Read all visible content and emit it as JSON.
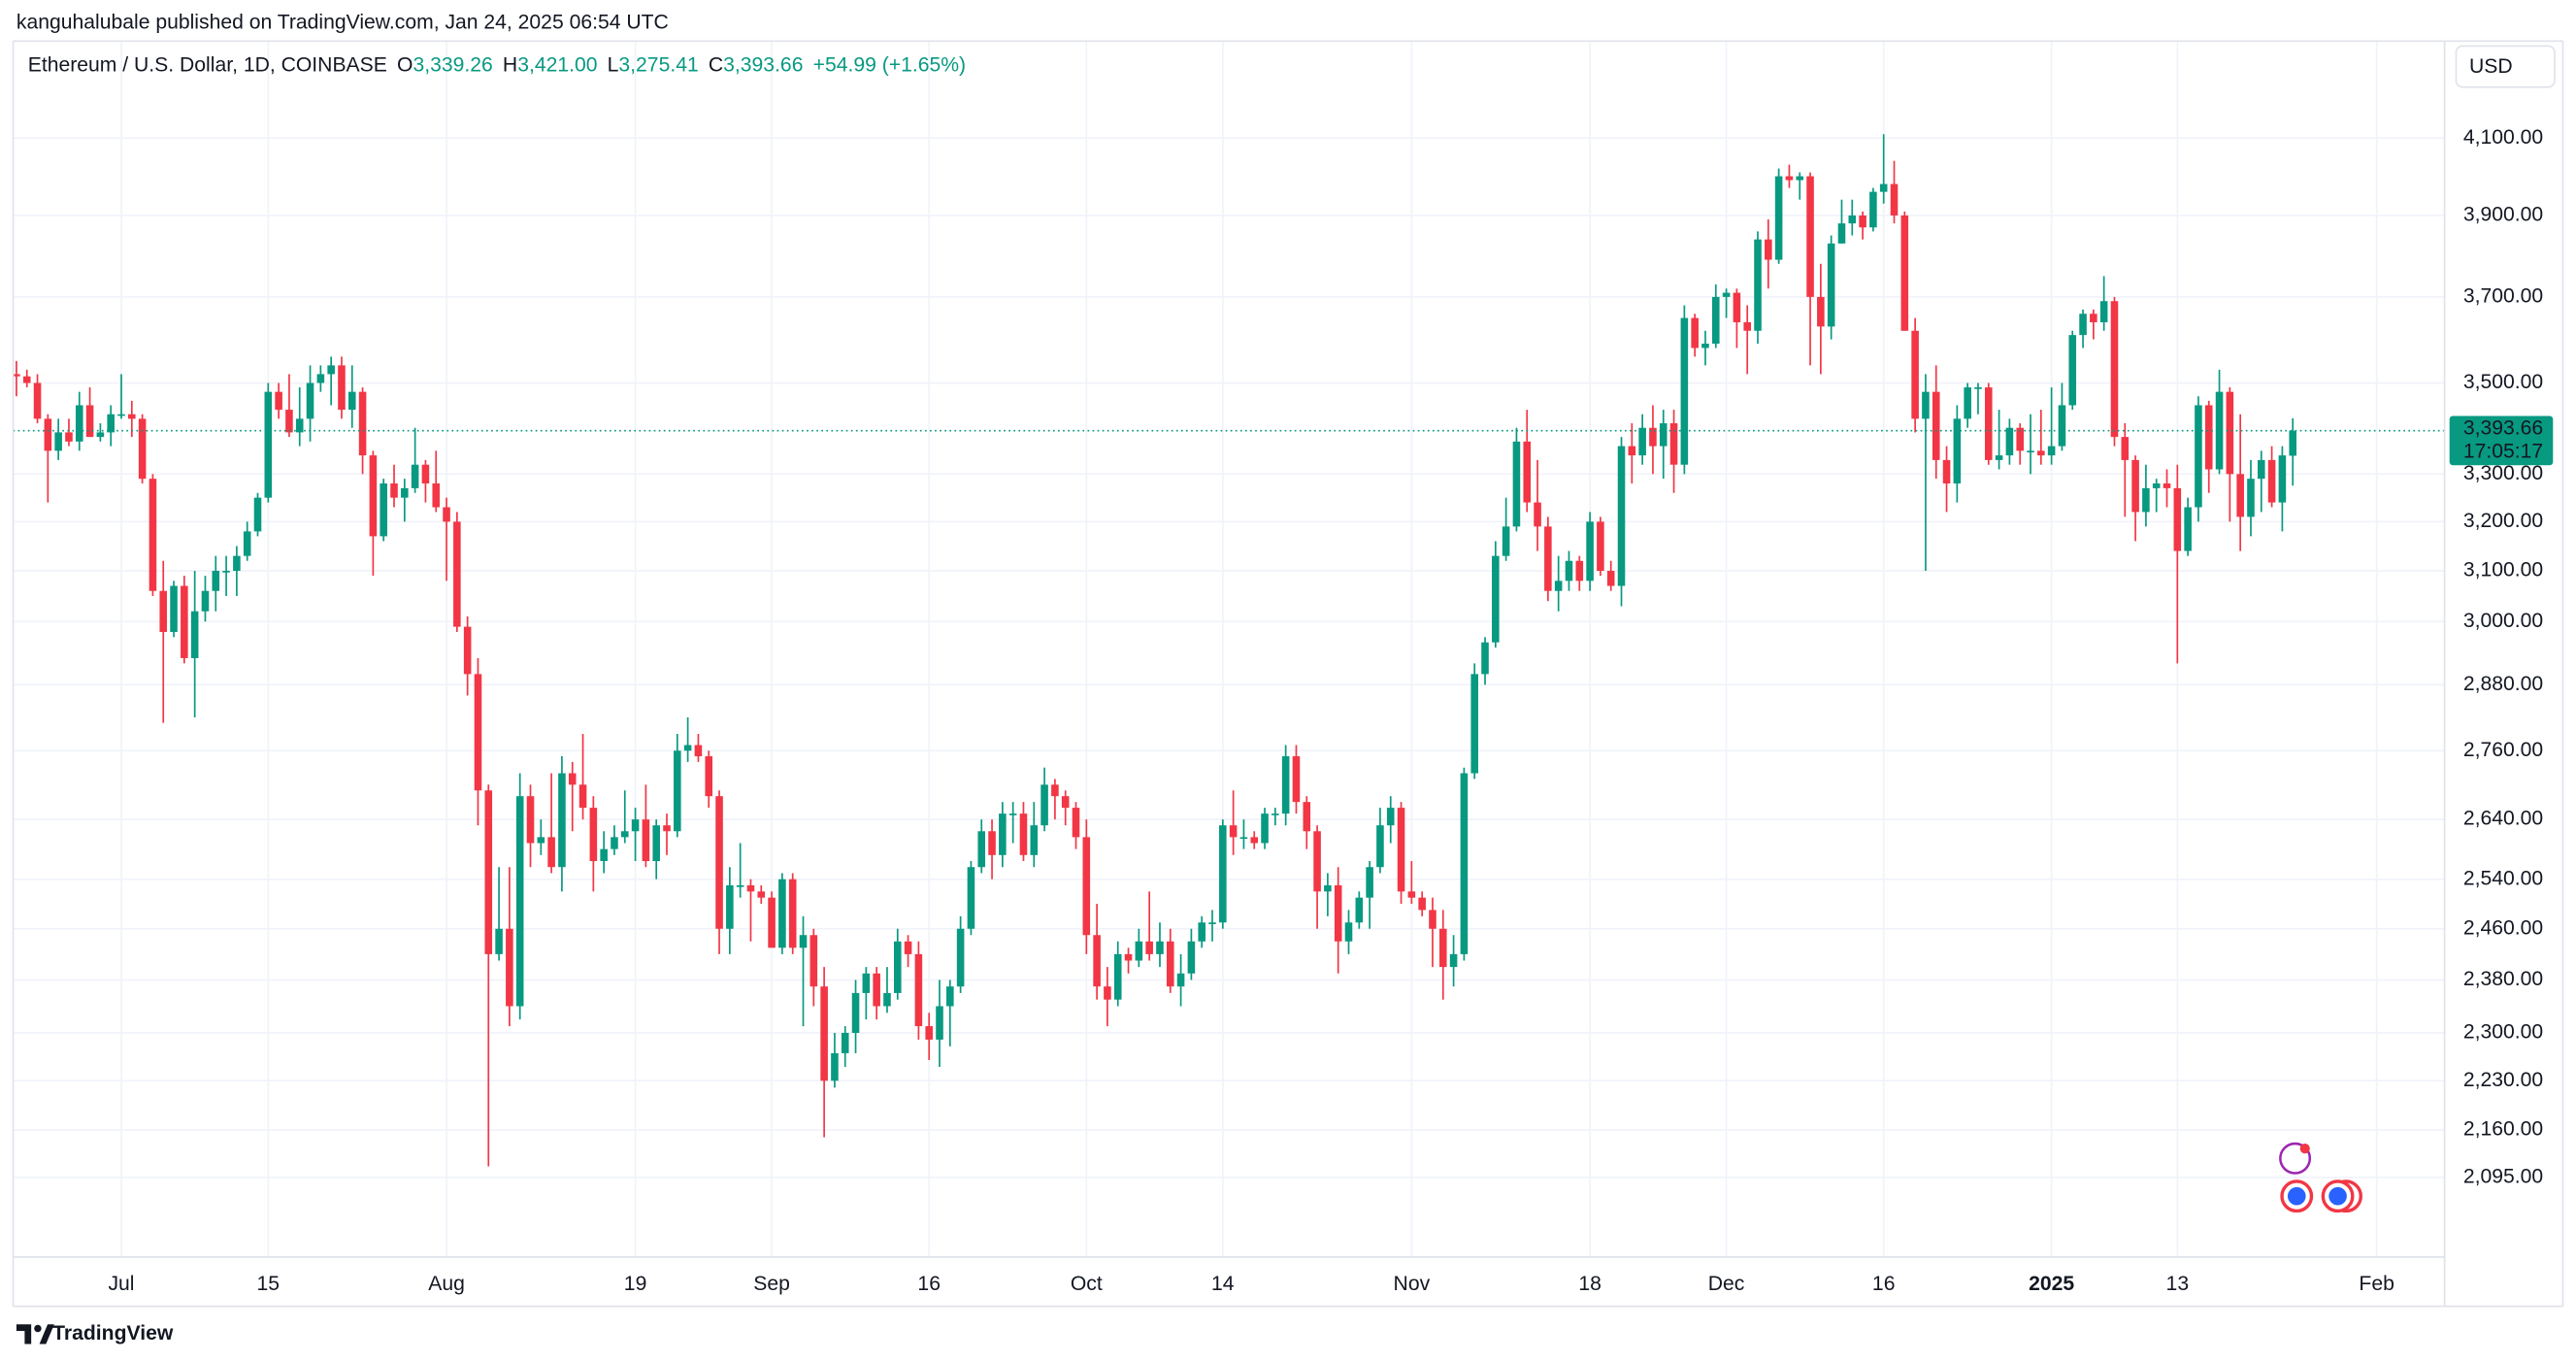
{
  "header": {
    "published": "kanguhalubale published on TradingView.com, Jan 24, 2025 06:54 UTC",
    "currency": "USD"
  },
  "footer": {
    "brand": "TradingView"
  },
  "chart_data": {
    "type": "candlestick",
    "title": "Ethereum / U.S. Dollar, 1D, COINBASE",
    "ohlc_legend": [
      {
        "key": "O",
        "text": "3,339.26"
      },
      {
        "key": "H",
        "text": "3,421.00"
      },
      {
        "key": "L",
        "text": "3,275.41"
      },
      {
        "key": "C",
        "text": "3,393.66"
      }
    ],
    "change": "+54.99 (+1.65%)",
    "price_tag": "3,393.66",
    "countdown": "17:05:17",
    "up_color": "#089981",
    "down_color": "#f23645",
    "log_scale": true,
    "grid": true,
    "xlim": [
      "2024-06-21",
      "2025-02-07"
    ],
    "ylim": [
      1990,
      4365
    ],
    "yticks": [
      {
        "value": 4100,
        "label": "4,100.00"
      },
      {
        "value": 3900,
        "label": "3,900.00"
      },
      {
        "value": 3700,
        "label": "3,700.00"
      },
      {
        "value": 3500,
        "label": "3,500.00"
      },
      {
        "value": 3300,
        "label": "3,300.00"
      },
      {
        "value": 3200,
        "label": "3,200.00"
      },
      {
        "value": 3100,
        "label": "3,100.00"
      },
      {
        "value": 3000,
        "label": "3,000.00"
      },
      {
        "value": 2880,
        "label": "2,880.00"
      },
      {
        "value": 2760,
        "label": "2,760.00"
      },
      {
        "value": 2640,
        "label": "2,640.00"
      },
      {
        "value": 2540,
        "label": "2,540.00"
      },
      {
        "value": 2460,
        "label": "2,460.00"
      },
      {
        "value": 2380,
        "label": "2,380.00"
      },
      {
        "value": 2300,
        "label": "2,300.00"
      },
      {
        "value": 2230,
        "label": "2,230.00"
      },
      {
        "value": 2160,
        "label": "2,160.00"
      },
      {
        "value": 2095,
        "label": "2,095.00"
      }
    ],
    "xticks": [
      {
        "value": "2024-07-01",
        "label": "Jul"
      },
      {
        "value": "2024-07-15",
        "label": "15"
      },
      {
        "value": "2024-08-01",
        "label": "Aug"
      },
      {
        "value": "2024-08-19",
        "label": "19"
      },
      {
        "value": "2024-09-01",
        "label": "Sep"
      },
      {
        "value": "2024-09-16",
        "label": "16"
      },
      {
        "value": "2024-10-01",
        "label": "Oct"
      },
      {
        "value": "2024-10-14",
        "label": "14"
      },
      {
        "value": "2024-11-01",
        "label": "Nov"
      },
      {
        "value": "2024-11-18",
        "label": "18"
      },
      {
        "value": "2024-12-01",
        "label": "Dec"
      },
      {
        "value": "2024-12-16",
        "label": "16"
      },
      {
        "value": "2025-01-01",
        "label": "2025"
      },
      {
        "value": "2025-01-13",
        "label": "13"
      },
      {
        "value": "2025-02-01",
        "label": "Feb"
      }
    ],
    "x": [
      "2024-06-21",
      "2024-06-22",
      "2024-06-23",
      "2024-06-24",
      "2024-06-25",
      "2024-06-26",
      "2024-06-27",
      "2024-06-28",
      "2024-06-29",
      "2024-06-30",
      "2024-07-01",
      "2024-07-02",
      "2024-07-03",
      "2024-07-04",
      "2024-07-05",
      "2024-07-06",
      "2024-07-07",
      "2024-07-08",
      "2024-07-09",
      "2024-07-10",
      "2024-07-11",
      "2024-07-12",
      "2024-07-13",
      "2024-07-14",
      "2024-07-15",
      "2024-07-16",
      "2024-07-17",
      "2024-07-18",
      "2024-07-19",
      "2024-07-20",
      "2024-07-21",
      "2024-07-22",
      "2024-07-23",
      "2024-07-24",
      "2024-07-25",
      "2024-07-26",
      "2024-07-27",
      "2024-07-28",
      "2024-07-29",
      "2024-07-30",
      "2024-07-31",
      "2024-08-01",
      "2024-08-02",
      "2024-08-03",
      "2024-08-04",
      "2024-08-05",
      "2024-08-06",
      "2024-08-07",
      "2024-08-08",
      "2024-08-09",
      "2024-08-10",
      "2024-08-11",
      "2024-08-12",
      "2024-08-13",
      "2024-08-14",
      "2024-08-15",
      "2024-08-16",
      "2024-08-17",
      "2024-08-18",
      "2024-08-19",
      "2024-08-20",
      "2024-08-21",
      "2024-08-22",
      "2024-08-23",
      "2024-08-24",
      "2024-08-25",
      "2024-08-26",
      "2024-08-27",
      "2024-08-28",
      "2024-08-29",
      "2024-08-30",
      "2024-08-31",
      "2024-09-01",
      "2024-09-02",
      "2024-09-03",
      "2024-09-04",
      "2024-09-05",
      "2024-09-06",
      "2024-09-07",
      "2024-09-08",
      "2024-09-09",
      "2024-09-10",
      "2024-09-11",
      "2024-09-12",
      "2024-09-13",
      "2024-09-14",
      "2024-09-15",
      "2024-09-16",
      "2024-09-17",
      "2024-09-18",
      "2024-09-19",
      "2024-09-20",
      "2024-09-21",
      "2024-09-22",
      "2024-09-23",
      "2024-09-24",
      "2024-09-25",
      "2024-09-26",
      "2024-09-27",
      "2024-09-28",
      "2024-09-29",
      "2024-09-30",
      "2024-10-01",
      "2024-10-02",
      "2024-10-03",
      "2024-10-04",
      "2024-10-05",
      "2024-10-06",
      "2024-10-07",
      "2024-10-08",
      "2024-10-09",
      "2024-10-10",
      "2024-10-11",
      "2024-10-12",
      "2024-10-13",
      "2024-10-14",
      "2024-10-15",
      "2024-10-16",
      "2024-10-17",
      "2024-10-18",
      "2024-10-19",
      "2024-10-20",
      "2024-10-21",
      "2024-10-22",
      "2024-10-23",
      "2024-10-24",
      "2024-10-25",
      "2024-10-26",
      "2024-10-27",
      "2024-10-28",
      "2024-10-29",
      "2024-10-30",
      "2024-10-31",
      "2024-11-01",
      "2024-11-02",
      "2024-11-03",
      "2024-11-04",
      "2024-11-05",
      "2024-11-06",
      "2024-11-07",
      "2024-11-08",
      "2024-11-09",
      "2024-11-10",
      "2024-11-11",
      "2024-11-12",
      "2024-11-13",
      "2024-11-14",
      "2024-11-15",
      "2024-11-16",
      "2024-11-17",
      "2024-11-18",
      "2024-11-19",
      "2024-11-20",
      "2024-11-21",
      "2024-11-22",
      "2024-11-23",
      "2024-11-24",
      "2024-11-25",
      "2024-11-26",
      "2024-11-27",
      "2024-11-28",
      "2024-11-29",
      "2024-11-30",
      "2024-12-01",
      "2024-12-02",
      "2024-12-03",
      "2024-12-04",
      "2024-12-05",
      "2024-12-06",
      "2024-12-07",
      "2024-12-08",
      "2024-12-09",
      "2024-12-10",
      "2024-12-11",
      "2024-12-12",
      "2024-12-13",
      "2024-12-14",
      "2024-12-15",
      "2024-12-16",
      "2024-12-17",
      "2024-12-18",
      "2024-12-19",
      "2024-12-20",
      "2024-12-21",
      "2024-12-22",
      "2024-12-23",
      "2024-12-24",
      "2024-12-25",
      "2024-12-26",
      "2024-12-27",
      "2024-12-28",
      "2024-12-29",
      "2024-12-30",
      "2024-12-31",
      "2025-01-01",
      "2025-01-02",
      "2025-01-03",
      "2025-01-04",
      "2025-01-05",
      "2025-01-06",
      "2025-01-07",
      "2025-01-08",
      "2025-01-09",
      "2025-01-10",
      "2025-01-11",
      "2025-01-12",
      "2025-01-13",
      "2025-01-14",
      "2025-01-15",
      "2025-01-16",
      "2025-01-17",
      "2025-01-18",
      "2025-01-19",
      "2025-01-20",
      "2025-01-21",
      "2025-01-22",
      "2025-01-23",
      "2025-01-24"
    ],
    "open": [
      3520,
      3515,
      3500,
      3420,
      3350,
      3390,
      3370,
      3450,
      3380,
      3390,
      3430,
      3430,
      3420,
      3290,
      3060,
      2980,
      3070,
      2930,
      3020,
      3060,
      3100,
      3100,
      3130,
      3180,
      3250,
      3480,
      3440,
      3390,
      3420,
      3500,
      3520,
      3540,
      3440,
      3480,
      3340,
      3170,
      3280,
      3250,
      3270,
      3320,
      3280,
      3230,
      3200,
      2990,
      2900,
      2690,
      2420,
      2460,
      2340,
      2680,
      2600,
      2610,
      2560,
      2720,
      2700,
      2660,
      2570,
      2590,
      2610,
      2620,
      2640,
      2570,
      2630,
      2620,
      2760,
      2770,
      2750,
      2680,
      2460,
      2530,
      2530,
      2520,
      2510,
      2430,
      2540,
      2430,
      2450,
      2370,
      2230,
      2270,
      2300,
      2360,
      2390,
      2340,
      2360,
      2440,
      2420,
      2310,
      2290,
      2340,
      2370,
      2460,
      2560,
      2620,
      2580,
      2650,
      2650,
      2580,
      2630,
      2700,
      2680,
      2660,
      2610,
      2450,
      2370,
      2350,
      2420,
      2410,
      2440,
      2420,
      2440,
      2370,
      2390,
      2440,
      2470,
      2470,
      2630,
      2610,
      2610,
      2600,
      2650,
      2650,
      2750,
      2670,
      2620,
      2520,
      2530,
      2440,
      2470,
      2510,
      2560,
      2630,
      2660,
      2520,
      2510,
      2490,
      2460,
      2400,
      2420,
      2720,
      2900,
      2960,
      3130,
      3190,
      3370,
      3240,
      3190,
      3060,
      3080,
      3120,
      3080,
      3200,
      3100,
      3070,
      3360,
      3340,
      3400,
      3360,
      3410,
      3320,
      3650,
      3580,
      3590,
      3700,
      3710,
      3640,
      3620,
      3840,
      3790,
      4000,
      3990,
      4000,
      3700,
      3630,
      3830,
      3880,
      3900,
      3870,
      3960,
      3980,
      3900,
      3620,
      3420,
      3480,
      3330,
      3280,
      3420,
      3490,
      3490,
      3330,
      3340,
      3400,
      3350,
      3350,
      3340,
      3360,
      3450,
      3610,
      3660,
      3640,
      3690,
      3380,
      3330,
      3220,
      3270,
      3280,
      3270,
      3140,
      3230,
      3450,
      3310,
      3480,
      3300,
      3210,
      3290,
      3330,
      3240,
      3339.26
    ],
    "high": [
      3550,
      3530,
      3520,
      3430,
      3420,
      3420,
      3480,
      3490,
      3410,
      3450,
      3520,
      3460,
      3430,
      3300,
      3120,
      3080,
      3090,
      3100,
      3090,
      3130,
      3130,
      3150,
      3200,
      3260,
      3500,
      3500,
      3520,
      3490,
      3540,
      3540,
      3560,
      3560,
      3540,
      3490,
      3350,
      3290,
      3320,
      3290,
      3400,
      3330,
      3350,
      3250,
      3220,
      3010,
      2930,
      2700,
      2560,
      2560,
      2720,
      2700,
      2640,
      2720,
      2750,
      2740,
      2790,
      2680,
      2620,
      2630,
      2690,
      2660,
      2700,
      2640,
      2650,
      2790,
      2820,
      2790,
      2760,
      2690,
      2560,
      2600,
      2540,
      2530,
      2520,
      2550,
      2550,
      2480,
      2460,
      2400,
      2300,
      2310,
      2380,
      2400,
      2400,
      2400,
      2460,
      2450,
      2440,
      2330,
      2380,
      2380,
      2480,
      2570,
      2640,
      2640,
      2670,
      2670,
      2670,
      2670,
      2730,
      2710,
      2690,
      2670,
      2640,
      2500,
      2400,
      2440,
      2430,
      2460,
      2520,
      2470,
      2460,
      2420,
      2460,
      2480,
      2490,
      2640,
      2690,
      2640,
      2620,
      2660,
      2660,
      2770,
      2770,
      2680,
      2630,
      2550,
      2560,
      2490,
      2520,
      2570,
      2660,
      2680,
      2670,
      2570,
      2520,
      2510,
      2490,
      2450,
      2730,
      2920,
      2970,
      3160,
      3250,
      3400,
      3440,
      3330,
      3210,
      3130,
      3140,
      3130,
      3220,
      3210,
      3120,
      3380,
      3410,
      3430,
      3450,
      3440,
      3440,
      3680,
      3660,
      3620,
      3730,
      3720,
      3720,
      3680,
      3860,
      3890,
      4020,
      4030,
      4010,
      4010,
      3780,
      3850,
      3940,
      3940,
      3910,
      3970,
      4110,
      4040,
      3910,
      3650,
      3520,
      3540,
      3360,
      3450,
      3500,
      3500,
      3500,
      3440,
      3420,
      3410,
      3430,
      3440,
      3490,
      3500,
      3620,
      3670,
      3670,
      3750,
      3700,
      3410,
      3340,
      3320,
      3290,
      3310,
      3320,
      3250,
      3470,
      3460,
      3530,
      3490,
      3430,
      3330,
      3350,
      3360,
      3360,
      3421
    ],
    "low": [
      3470,
      3490,
      3410,
      3240,
      3330,
      3360,
      3350,
      3380,
      3370,
      3360,
      3420,
      3380,
      3280,
      3050,
      2810,
      2970,
      2920,
      2820,
      3000,
      3020,
      3050,
      3050,
      3120,
      3170,
      3240,
      3420,
      3380,
      3360,
      3370,
      3480,
      3450,
      3420,
      3400,
      3300,
      3090,
      3160,
      3230,
      3200,
      3260,
      3240,
      3220,
      3080,
      2980,
      2860,
      2630,
      2110,
      2410,
      2310,
      2320,
      2560,
      2580,
      2550,
      2520,
      2620,
      2640,
      2520,
      2550,
      2580,
      2600,
      2570,
      2560,
      2540,
      2580,
      2610,
      2740,
      2740,
      2660,
      2420,
      2420,
      2510,
      2440,
      2500,
      2430,
      2420,
      2420,
      2310,
      2340,
      2150,
      2220,
      2250,
      2270,
      2320,
      2320,
      2330,
      2350,
      2400,
      2290,
      2260,
      2250,
      2280,
      2360,
      2450,
      2550,
      2540,
      2560,
      2600,
      2570,
      2560,
      2620,
      2640,
      2630,
      2590,
      2420,
      2350,
      2310,
      2340,
      2390,
      2400,
      2410,
      2400,
      2360,
      2340,
      2380,
      2430,
      2440,
      2460,
      2580,
      2590,
      2590,
      2590,
      2630,
      2630,
      2650,
      2590,
      2460,
      2480,
      2390,
      2420,
      2460,
      2460,
      2550,
      2600,
      2500,
      2500,
      2480,
      2400,
      2350,
      2370,
      2410,
      2710,
      2880,
      2950,
      3120,
      3180,
      3220,
      3140,
      3040,
      3020,
      3060,
      3060,
      3060,
      3090,
      3060,
      3030,
      3280,
      3320,
      3300,
      3290,
      3260,
      3300,
      3560,
      3540,
      3580,
      3650,
      3580,
      3520,
      3590,
      3720,
      3780,
      3970,
      3940,
      3540,
      3520,
      3600,
      3830,
      3850,
      3840,
      3860,
      3930,
      3880,
      3620,
      3390,
      3100,
      3290,
      3220,
      3240,
      3400,
      3430,
      3320,
      3310,
      3320,
      3320,
      3300,
      3320,
      3320,
      3350,
      3440,
      3580,
      3600,
      3620,
      3360,
      3210,
      3160,
      3190,
      3220,
      3230,
      2920,
      3130,
      3200,
      3260,
      3300,
      3200,
      3140,
      3170,
      3220,
      3230,
      3180,
      3275.41
    ],
    "close": [
      3515,
      3500,
      3420,
      3350,
      3390,
      3370,
      3450,
      3380,
      3390,
      3430,
      3430,
      3420,
      3290,
      3060,
      2980,
      3070,
      2930,
      3020,
      3060,
      3100,
      3100,
      3130,
      3180,
      3250,
      3480,
      3440,
      3390,
      3420,
      3500,
      3520,
      3540,
      3440,
      3480,
      3340,
      3170,
      3280,
      3250,
      3270,
      3320,
      3280,
      3230,
      3200,
      2990,
      2900,
      2690,
      2420,
      2460,
      2340,
      2680,
      2600,
      2610,
      2560,
      2720,
      2700,
      2660,
      2570,
      2590,
      2610,
      2620,
      2640,
      2570,
      2630,
      2620,
      2760,
      2770,
      2750,
      2680,
      2460,
      2530,
      2530,
      2520,
      2510,
      2430,
      2540,
      2430,
      2450,
      2370,
      2230,
      2270,
      2300,
      2360,
      2390,
      2340,
      2360,
      2440,
      2420,
      2310,
      2290,
      2340,
      2370,
      2460,
      2560,
      2620,
      2580,
      2650,
      2650,
      2580,
      2630,
      2700,
      2680,
      2660,
      2610,
      2450,
      2370,
      2350,
      2420,
      2410,
      2440,
      2420,
      2440,
      2370,
      2390,
      2440,
      2470,
      2470,
      2630,
      2610,
      2610,
      2600,
      2650,
      2650,
      2750,
      2670,
      2620,
      2520,
      2530,
      2440,
      2470,
      2510,
      2560,
      2630,
      2660,
      2520,
      2510,
      2490,
      2460,
      2400,
      2420,
      2720,
      2900,
      2960,
      3130,
      3190,
      3370,
      3240,
      3190,
      3060,
      3080,
      3120,
      3080,
      3200,
      3100,
      3070,
      3360,
      3340,
      3400,
      3360,
      3410,
      3320,
      3650,
      3580,
      3590,
      3700,
      3710,
      3640,
      3620,
      3840,
      3790,
      4000,
      3990,
      4000,
      3700,
      3630,
      3830,
      3880,
      3900,
      3870,
      3960,
      3980,
      3900,
      3620,
      3420,
      3480,
      3330,
      3280,
      3420,
      3490,
      3490,
      3330,
      3340,
      3400,
      3350,
      3350,
      3340,
      3360,
      3450,
      3610,
      3660,
      3640,
      3690,
      3380,
      3330,
      3220,
      3270,
      3280,
      3270,
      3140,
      3230,
      3450,
      3310,
      3480,
      3300,
      3210,
      3290,
      3330,
      3240,
      3340,
      3393.66
    ]
  }
}
